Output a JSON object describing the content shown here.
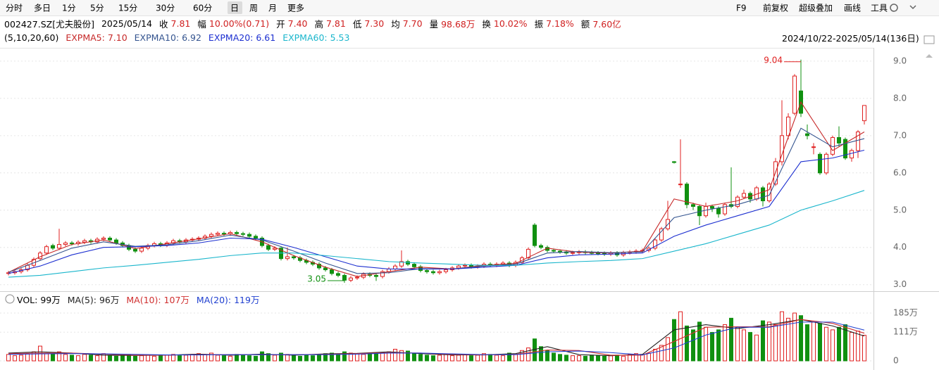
{
  "toolbar": {
    "periods": [
      "分时",
      "多日",
      "1分",
      "5分",
      "15分",
      "30分",
      "60分",
      "日",
      "周",
      "月",
      "更多"
    ],
    "active_index": 7,
    "tools": [
      "F9",
      "前复权",
      "超级叠加",
      "画线",
      "工具"
    ]
  },
  "info": {
    "code": "002427.SZ[尤夫股份]",
    "date": "2025/05/14",
    "fields": [
      {
        "k": "收",
        "v": "7.81"
      },
      {
        "k": "幅",
        "v": "10.00%(0.71)"
      },
      {
        "k": "开",
        "v": "7.40"
      },
      {
        "k": "高",
        "v": "7.81"
      },
      {
        "k": "低",
        "v": "7.30"
      },
      {
        "k": "均",
        "v": "7.70"
      },
      {
        "k": "量",
        "v": "98.68万"
      },
      {
        "k": "换",
        "v": "10.02%"
      },
      {
        "k": "振",
        "v": "7.18%"
      },
      {
        "k": "额",
        "v": "7.60亿"
      }
    ]
  },
  "chart_data": {
    "type": "candlestick",
    "params": "(5,10,20,60)",
    "date_range": "2024/10/22-2025/05/14(136日)",
    "up_color": "#e02020",
    "down_color": "#109010",
    "open": [
      3.3,
      3.32,
      3.35,
      3.4,
      3.52,
      3.7,
      3.85,
      4.05,
      3.98,
      4.08,
      4.12,
      4.1,
      4.14,
      4.18,
      4.15,
      4.22,
      4.25,
      4.2,
      4.12,
      4.05,
      3.95,
      3.9,
      3.98,
      4.05,
      4.1,
      4.06,
      4.12,
      4.18,
      4.15,
      4.2,
      4.22,
      4.25,
      4.3,
      4.35,
      4.38,
      4.36,
      4.4,
      4.37,
      4.35,
      4.3,
      4.25,
      4.05,
      3.95,
      3.98,
      3.7,
      3.75,
      3.72,
      3.65,
      3.6,
      3.55,
      3.45,
      3.4,
      3.3,
      3.25,
      3.12,
      3.18,
      3.2,
      3.28,
      3.25,
      3.22,
      3.35,
      3.42,
      3.5,
      3.62,
      3.55,
      3.48,
      3.38,
      3.35,
      3.32,
      3.35,
      3.4,
      3.45,
      3.5,
      3.52,
      3.48,
      3.5,
      3.55,
      3.52,
      3.55,
      3.58,
      3.52,
      3.6,
      3.72,
      4.6,
      4.05,
      4.0,
      3.92,
      3.9,
      3.88,
      3.85,
      3.86,
      3.88,
      3.86,
      3.85,
      3.84,
      3.82,
      3.85,
      3.8,
      3.86,
      3.88,
      3.9,
      3.92,
      3.98,
      4.2,
      4.5,
      6.3,
      5.7,
      5.7,
      5.15,
      5.1,
      4.85,
      5.1,
      5.05,
      4.9,
      5.15,
      5.1,
      5.35,
      5.45,
      5.3,
      5.6,
      5.25,
      5.7,
      6.3,
      7.0,
      7.6,
      8.2,
      7.05,
      6.7,
      6.5,
      6.0,
      6.5,
      6.95,
      6.9,
      6.4,
      6.6,
      7.4
    ],
    "high": [
      3.37,
      3.4,
      3.45,
      3.57,
      3.73,
      3.9,
      4.07,
      4.1,
      4.5,
      4.17,
      4.17,
      4.19,
      4.23,
      4.23,
      4.27,
      4.3,
      4.3,
      4.25,
      4.17,
      4.1,
      4.0,
      4.03,
      4.1,
      4.15,
      4.15,
      4.17,
      4.23,
      4.23,
      4.25,
      4.27,
      4.3,
      4.35,
      4.4,
      4.43,
      4.43,
      4.45,
      4.45,
      4.42,
      4.4,
      4.35,
      4.3,
      4.1,
      4.03,
      4.03,
      4.0,
      3.8,
      3.77,
      3.7,
      3.65,
      3.6,
      3.5,
      3.45,
      3.35,
      3.3,
      3.23,
      3.25,
      3.33,
      3.33,
      3.3,
      3.4,
      3.47,
      3.55,
      3.92,
      3.67,
      3.6,
      3.53,
      3.43,
      3.4,
      3.4,
      3.45,
      3.5,
      3.55,
      3.57,
      3.57,
      3.55,
      3.6,
      3.6,
      3.6,
      3.63,
      3.63,
      3.65,
      3.77,
      4.0,
      4.65,
      4.1,
      4.05,
      3.97,
      3.95,
      3.93,
      3.91,
      3.93,
      3.93,
      3.91,
      3.9,
      3.89,
      3.9,
      3.9,
      3.91,
      3.93,
      3.95,
      3.97,
      4.03,
      4.25,
      4.55,
      5.25,
      6.32,
      6.9,
      5.75,
      5.2,
      5.15,
      5.2,
      5.15,
      5.1,
      5.2,
      6.15,
      5.4,
      5.55,
      5.5,
      5.65,
      5.65,
      5.75,
      6.4,
      7.95,
      7.6,
      8.65,
      9.04,
      7.3,
      6.8,
      6.55,
      6.55,
      7.0,
      7.25,
      6.95,
      6.65,
      7.15,
      7.81
    ],
    "low": [
      3.25,
      3.27,
      3.3,
      3.35,
      3.47,
      3.65,
      3.8,
      3.93,
      3.93,
      4.03,
      4.05,
      4.05,
      4.09,
      4.1,
      4.1,
      4.17,
      4.15,
      4.07,
      4.0,
      3.9,
      3.85,
      3.85,
      3.93,
      4.0,
      4.01,
      4.01,
      4.07,
      4.1,
      4.1,
      4.15,
      4.17,
      4.2,
      4.25,
      4.3,
      4.31,
      4.31,
      4.32,
      4.3,
      4.25,
      4.2,
      4.0,
      3.9,
      3.9,
      3.65,
      3.65,
      3.67,
      3.6,
      3.55,
      3.5,
      3.4,
      3.35,
      3.25,
      3.2,
      3.05,
      3.07,
      3.13,
      3.15,
      3.2,
      3.1,
      3.17,
      3.3,
      3.37,
      3.45,
      3.5,
      3.43,
      3.33,
      3.3,
      3.27,
      3.27,
      3.3,
      3.35,
      3.4,
      3.45,
      3.43,
      3.43,
      3.45,
      3.47,
      3.47,
      3.5,
      3.47,
      3.47,
      3.55,
      3.67,
      4.0,
      3.95,
      3.87,
      3.85,
      3.83,
      3.8,
      3.8,
      3.81,
      3.81,
      3.8,
      3.79,
      3.77,
      3.77,
      3.75,
      3.75,
      3.81,
      3.83,
      3.85,
      3.87,
      3.93,
      4.15,
      4.45,
      6.25,
      5.6,
      5.05,
      5.0,
      4.6,
      4.8,
      4.95,
      4.8,
      4.85,
      5.05,
      5.05,
      5.3,
      5.2,
      5.25,
      5.1,
      5.2,
      5.65,
      6.2,
      6.9,
      7.55,
      7.5,
      6.9,
      6.5,
      5.95,
      5.95,
      6.45,
      6.7,
      6.35,
      6.3,
      6.4,
      7.3
    ],
    "close": [
      3.32,
      3.35,
      3.4,
      3.52,
      3.68,
      3.85,
      4.02,
      3.98,
      4.08,
      4.12,
      4.1,
      4.14,
      4.18,
      4.15,
      4.22,
      4.25,
      4.2,
      4.12,
      4.05,
      3.95,
      3.9,
      3.98,
      4.05,
      4.1,
      4.06,
      4.12,
      4.18,
      4.15,
      4.2,
      4.22,
      4.25,
      4.3,
      4.35,
      4.38,
      4.36,
      4.4,
      4.37,
      4.35,
      4.3,
      4.25,
      4.05,
      3.95,
      3.98,
      3.7,
      3.75,
      3.72,
      3.65,
      3.6,
      3.55,
      3.45,
      3.4,
      3.3,
      3.25,
      3.12,
      3.18,
      3.2,
      3.28,
      3.25,
      3.22,
      3.35,
      3.42,
      3.5,
      3.62,
      3.55,
      3.48,
      3.38,
      3.35,
      3.32,
      3.35,
      3.4,
      3.45,
      3.5,
      3.52,
      3.48,
      3.5,
      3.55,
      3.52,
      3.55,
      3.58,
      3.52,
      3.6,
      3.72,
      3.95,
      4.05,
      4.0,
      3.92,
      3.9,
      3.88,
      3.85,
      3.86,
      3.88,
      3.86,
      3.85,
      3.84,
      3.82,
      3.85,
      3.8,
      3.86,
      3.88,
      3.9,
      3.92,
      3.98,
      4.2,
      4.5,
      4.75,
      6.28,
      5.7,
      5.15,
      5.1,
      4.85,
      5.1,
      5.05,
      4.9,
      5.15,
      5.1,
      5.35,
      5.45,
      5.3,
      5.6,
      5.25,
      5.7,
      6.3,
      7.0,
      7.5,
      8.6,
      7.6,
      7.0,
      6.7,
      6.0,
      6.5,
      6.95,
      6.8,
      6.4,
      6.6,
      7.1,
      7.81
    ],
    "ma_x": [
      0,
      5,
      10,
      15,
      20,
      25,
      30,
      35,
      40,
      45,
      50,
      55,
      60,
      65,
      70,
      75,
      80,
      85,
      90,
      95,
      100,
      105,
      110,
      115,
      120,
      125,
      130,
      135
    ],
    "series": [
      {
        "name": "EXPMA5: 7.10",
        "color": "#c62828",
        "values": [
          3.33,
          3.75,
          4.08,
          4.2,
          3.97,
          4.1,
          4.23,
          4.37,
          4.15,
          3.78,
          3.47,
          3.22,
          3.35,
          3.47,
          3.42,
          3.52,
          3.57,
          3.98,
          3.87,
          3.85,
          3.9,
          5.3,
          5.1,
          5.25,
          5.55,
          7.9,
          6.6,
          7.1
        ]
      },
      {
        "name": "EXPMA10: 6.92",
        "color": "#34548f",
        "values": [
          3.33,
          3.65,
          3.98,
          4.15,
          4.03,
          4.07,
          4.18,
          4.33,
          4.2,
          3.9,
          3.58,
          3.3,
          3.32,
          3.43,
          3.42,
          3.5,
          3.55,
          3.85,
          3.89,
          3.86,
          3.88,
          4.8,
          5.0,
          5.15,
          5.4,
          7.2,
          6.7,
          6.92
        ]
      },
      {
        "name": "EXPMA20: 6.61",
        "color": "#1c2fd0",
        "values": [
          3.3,
          3.5,
          3.8,
          4.0,
          4.02,
          4.05,
          4.12,
          4.25,
          4.22,
          4.0,
          3.75,
          3.5,
          3.42,
          3.42,
          3.42,
          3.47,
          3.52,
          3.72,
          3.8,
          3.82,
          3.85,
          4.3,
          4.6,
          4.85,
          5.1,
          6.3,
          6.4,
          6.61
        ]
      },
      {
        "name": "EXPMA60: 5.53",
        "color": "#1ab6cc",
        "values": [
          3.2,
          3.25,
          3.35,
          3.45,
          3.52,
          3.6,
          3.68,
          3.78,
          3.85,
          3.85,
          3.78,
          3.7,
          3.62,
          3.58,
          3.55,
          3.52,
          3.52,
          3.58,
          3.62,
          3.65,
          3.7,
          3.9,
          4.1,
          4.35,
          4.6,
          5.0,
          5.25,
          5.53
        ]
      }
    ],
    "ylim": [
      2.9,
      9.3
    ],
    "yticks": [
      {
        "value": 9,
        "label": "9.0"
      },
      {
        "value": 8,
        "label": "8.0"
      },
      {
        "value": 7,
        "label": "7.0"
      },
      {
        "value": 6,
        "label": "6.0"
      },
      {
        "value": 5,
        "label": "5.0"
      },
      {
        "value": 4,
        "label": "4.0"
      },
      {
        "value": 3,
        "label": "3.0"
      }
    ],
    "annotations": [
      {
        "text": "9.04",
        "index": 125
      },
      {
        "text": "3.05",
        "index": 53
      }
    ],
    "volume": {
      "title": "VOL: 99万",
      "values": [
        25,
        20,
        22,
        28,
        35,
        57,
        30,
        28,
        35,
        25,
        22,
        20,
        25,
        22,
        20,
        28,
        22,
        18,
        20,
        25,
        18,
        20,
        22,
        18,
        20,
        22,
        25,
        20,
        22,
        25,
        28,
        25,
        30,
        22,
        20,
        18,
        25,
        22,
        20,
        18,
        35,
        28,
        22,
        30,
        25,
        20,
        18,
        22,
        20,
        25,
        28,
        30,
        25,
        35,
        30,
        28,
        25,
        30,
        28,
        32,
        35,
        45,
        40,
        38,
        28,
        25,
        22,
        20,
        22,
        25,
        20,
        22,
        25,
        20,
        22,
        28,
        25,
        22,
        20,
        30,
        25,
        40,
        50,
        85,
        55,
        40,
        30,
        25,
        22,
        20,
        20,
        18,
        22,
        20,
        18,
        20,
        22,
        18,
        25,
        28,
        25,
        30,
        45,
        60,
        90,
        160,
        190,
        135,
        120,
        150,
        130,
        110,
        120,
        140,
        165,
        130,
        120,
        110,
        100,
        155,
        150,
        140,
        190,
        165,
        185,
        175,
        140,
        150,
        145,
        130,
        120,
        130,
        140,
        110,
        115,
        99
      ],
      "series": [
        {
          "name": "MA(5): 96万",
          "color": "#222222",
          "values": [
            30,
            35,
            30,
            22,
            21,
            22,
            26,
            22,
            26,
            22,
            27,
            29,
            35,
            28,
            23,
            23,
            28,
            55,
            24,
            20,
            25,
            120,
            140,
            125,
            140,
            160,
            135,
            96
          ]
        },
        {
          "name": "MA(10): 107万",
          "color": "#d03030",
          "values": [
            28,
            30,
            30,
            26,
            22,
            22,
            24,
            24,
            24,
            24,
            25,
            28,
            32,
            30,
            25,
            23,
            25,
            42,
            40,
            22,
            22,
            75,
            130,
            132,
            132,
            160,
            145,
            107
          ]
        },
        {
          "name": "MA(20): 119万",
          "color": "#2040d0",
          "values": [
            25,
            27,
            28,
            27,
            25,
            23,
            23,
            24,
            24,
            24,
            24,
            26,
            30,
            30,
            27,
            24,
            24,
            35,
            38,
            32,
            23,
            50,
            100,
            130,
            130,
            150,
            150,
            119
          ]
        }
      ],
      "ylim": [
        0,
        200
      ],
      "yticks": [
        {
          "value": 185,
          "label": "185万"
        },
        {
          "value": 111,
          "label": "111万"
        },
        0
      ]
    }
  }
}
